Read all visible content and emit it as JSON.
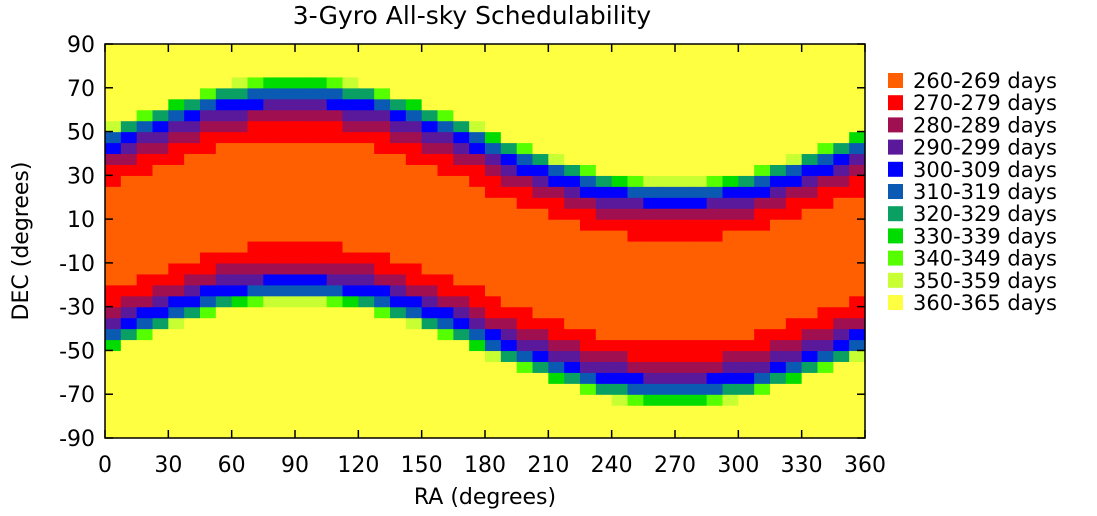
{
  "chart_data": {
    "type": "heatmap",
    "title": "3-Gyro All-sky Schedulability",
    "xlabel": "RA (degrees)",
    "ylabel": "DEC (degrees)",
    "xlim": [
      0,
      360
    ],
    "ylim": [
      -90,
      90
    ],
    "x_ticks": [
      0,
      30,
      60,
      90,
      120,
      150,
      180,
      210,
      240,
      270,
      300,
      330,
      360
    ],
    "y_ticks": [
      90,
      70,
      50,
      30,
      10,
      -10,
      -30,
      -50,
      -70,
      -90
    ],
    "grid": false,
    "legend_position": "right",
    "color_bins": [
      {
        "label": "260-269 days",
        "min": 260,
        "max": 269,
        "color": "#ff5f00"
      },
      {
        "label": "270-279 days",
        "min": 270,
        "max": 279,
        "color": "#ff0000"
      },
      {
        "label": "280-289 days",
        "min": 280,
        "max": 289,
        "color": "#a01050"
      },
      {
        "label": "290-299 days",
        "min": 290,
        "max": 299,
        "color": "#5a189a"
      },
      {
        "label": "300-309 days",
        "min": 300,
        "max": 309,
        "color": "#0000ff"
      },
      {
        "label": "310-319 days",
        "min": 310,
        "max": 319,
        "color": "#0a5ab4"
      },
      {
        "label": "320-329 days",
        "min": 320,
        "max": 329,
        "color": "#0aa064"
      },
      {
        "label": "330-339 days",
        "min": 330,
        "max": 339,
        "color": "#00dc00"
      },
      {
        "label": "340-349 days",
        "min": 340,
        "max": 349,
        "color": "#55ff00"
      },
      {
        "label": "350-359 days",
        "min": 350,
        "max": 359,
        "color": "#c8ff32"
      },
      {
        "label": "360-365 days",
        "min": 360,
        "max": 365,
        "color": "#ffff41"
      }
    ],
    "cell_size_deg": {
      "ra": 7.5,
      "dec": 5
    },
    "band_model": {
      "description": "Schedulability band follows the ecliptic; DEC offset from band centre sets the day bin.",
      "center_dec_amplitude": 23.5,
      "center_dec_phase_ra": 0,
      "half_width_by_bin": [
        {
          "bin": "260-269 days",
          "half_width": 24
        },
        {
          "bin": "270-279 days",
          "half_width": 31
        },
        {
          "bin": "280-289 days",
          "half_width": 36
        },
        {
          "bin": "290-299 days",
          "half_width": 40
        },
        {
          "bin": "300-309 days",
          "half_width": 44
        },
        {
          "bin": "310-319 days",
          "half_width": 46
        },
        {
          "bin": "320-329 days",
          "half_width": 48.5
        },
        {
          "bin": "330-339 days",
          "half_width": 49.5
        },
        {
          "bin": "340-349 days",
          "half_width": 50.5
        },
        {
          "bin": "350-359 days",
          "half_width": 51.5
        }
      ]
    }
  }
}
